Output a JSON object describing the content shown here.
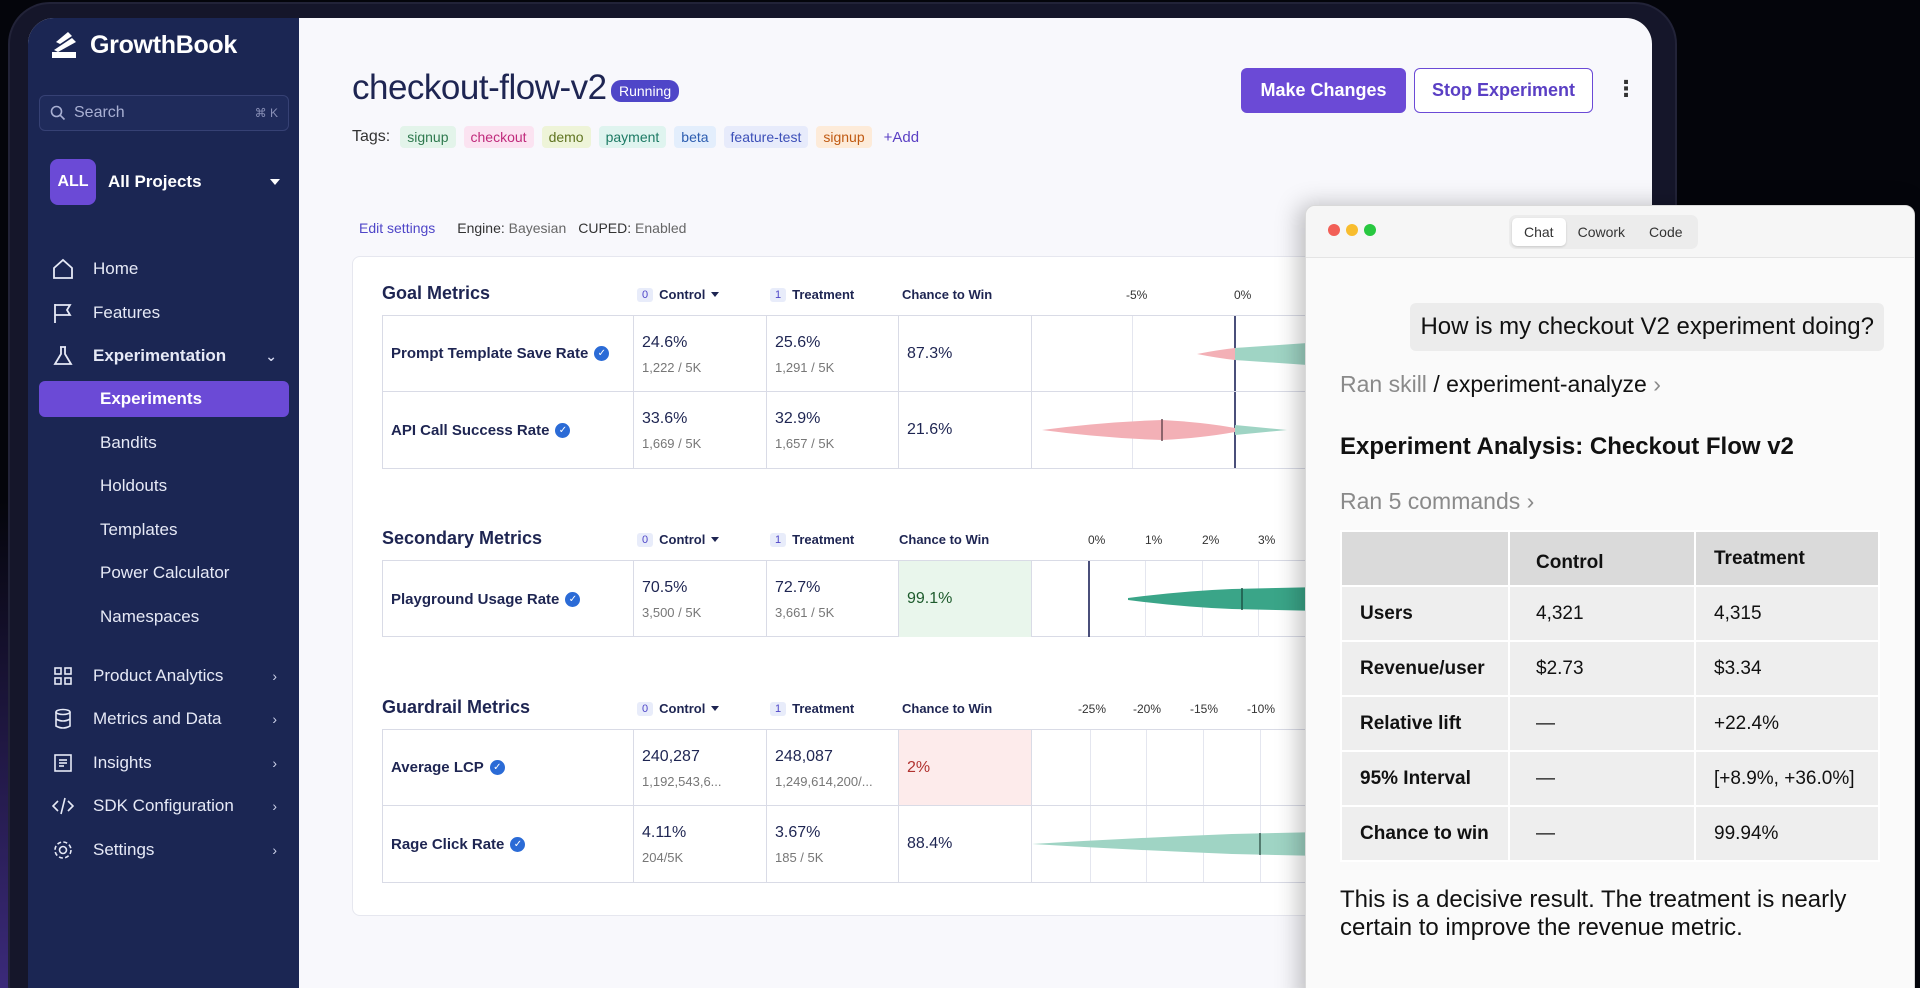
{
  "sidebar": {
    "brand": "GrowthBook",
    "search_placeholder": "Search",
    "search_shortcut": "⌘ K",
    "project_badge": "ALL",
    "project_name": "All Projects",
    "nav": {
      "home": "Home",
      "features": "Features",
      "experimentation": "Experimentation",
      "product_analytics": "Product Analytics",
      "metrics_and_data": "Metrics and Data",
      "insights": "Insights",
      "sdk_configuration": "SDK Configuration",
      "settings": "Settings"
    },
    "sub": {
      "experiments": "Experiments",
      "bandits": "Bandits",
      "holdouts": "Holdouts",
      "templates": "Templates",
      "power_calculator": "Power Calculator",
      "namespaces": "Namespaces"
    }
  },
  "header": {
    "title": "checkout-flow-v2",
    "status": "Running",
    "make_changes": "Make Changes",
    "stop_experiment": "Stop Experiment",
    "more": "⋮",
    "tags_label": "Tags:",
    "tags": [
      {
        "label": "signup",
        "bg": "#e3f4ea",
        "fg": "#2f7a4f"
      },
      {
        "label": "checkout",
        "bg": "#fbe3f1",
        "fg": "#c02a7c"
      },
      {
        "label": "demo",
        "bg": "#eef4d8",
        "fg": "#5f7420"
      },
      {
        "label": "payment",
        "bg": "#dff4ef",
        "fg": "#1c7a64"
      },
      {
        "label": "beta",
        "bg": "#e3eefc",
        "fg": "#2c5db0"
      },
      {
        "label": "feature-test",
        "bg": "#e7ebfb",
        "fg": "#3c4fb8"
      },
      {
        "label": "signup",
        "bg": "#fdebd9",
        "fg": "#c05a12"
      }
    ],
    "add_tag": "+Add"
  },
  "settings_bar": {
    "edit": "Edit settings",
    "engine_label": "Engine:",
    "engine_value": "Bayesian",
    "cuped_label": "CUPED:",
    "cuped_value": "Enabled"
  },
  "columns": {
    "control_index": "0",
    "control": "Control",
    "treatment_index": "1",
    "treatment": "Treatment",
    "chance": "Chance to Win"
  },
  "sections": {
    "goal": {
      "title": "Goal Metrics",
      "axis": [
        "-5%",
        "0%"
      ],
      "rows": [
        {
          "name": "Prompt Template Save Rate",
          "control": "24.6%",
          "control_sub": "1,222 / 5K",
          "treatment": "25.6%",
          "treatment_sub": "1,291 / 5K",
          "chance": "87.3%"
        },
        {
          "name": "API Call Success Rate",
          "control": "33.6%",
          "control_sub": "1,669 / 5K",
          "treatment": "32.9%",
          "treatment_sub": "1,657 / 5K",
          "chance": "21.6%"
        }
      ]
    },
    "secondary": {
      "title": "Secondary Metrics",
      "axis": [
        "0%",
        "1%",
        "2%",
        "3%"
      ],
      "rows": [
        {
          "name": "Playground Usage Rate",
          "control": "70.5%",
          "control_sub": "3,500 / 5K",
          "treatment": "72.7%",
          "treatment_sub": "3,661 / 5K",
          "chance": "99.1%"
        }
      ]
    },
    "guardrail": {
      "title": "Guardrail Metrics",
      "axis": [
        "-25%",
        "-20%",
        "-15%",
        "-10%"
      ],
      "rows": [
        {
          "name": "Average LCP",
          "control": "240,287",
          "control_sub": "1,192,543,6...",
          "treatment": "248,087",
          "treatment_sub": "1,249,614,200/...",
          "chance": "2%"
        },
        {
          "name": "Rage Click Rate",
          "control": "4.11%",
          "control_sub": "204/5K",
          "treatment": "3.67%",
          "treatment_sub": "185 / 5K",
          "chance": "88.4%"
        }
      ]
    }
  },
  "chat": {
    "tabs": [
      "Chat",
      "Cowork",
      "Code"
    ],
    "question": "How is my checkout V2 experiment doing?",
    "ran_skill_prefix": "Ran skill",
    "ran_skill_name": "/ experiment-analyze",
    "ran_skill_chev": "›",
    "heading": "Experiment Analysis: Checkout Flow v2",
    "ran_commands": "Ran 5 commands ›",
    "table": {
      "headers": [
        "",
        "Control",
        "Treatment"
      ],
      "rows": [
        [
          "Users",
          "4,321",
          "4,315"
        ],
        [
          "Revenue/user",
          "$2.73",
          "$3.34"
        ],
        [
          "Relative lift",
          "—",
          "+22.4%"
        ],
        [
          "95% Interval",
          "—",
          "[+8.9%, +36.0%]"
        ],
        [
          "Chance to win",
          "—",
          "99.94%"
        ]
      ]
    },
    "summary": "This is a decisive result. The treatment is nearly certain to improve the revenue metric."
  }
}
